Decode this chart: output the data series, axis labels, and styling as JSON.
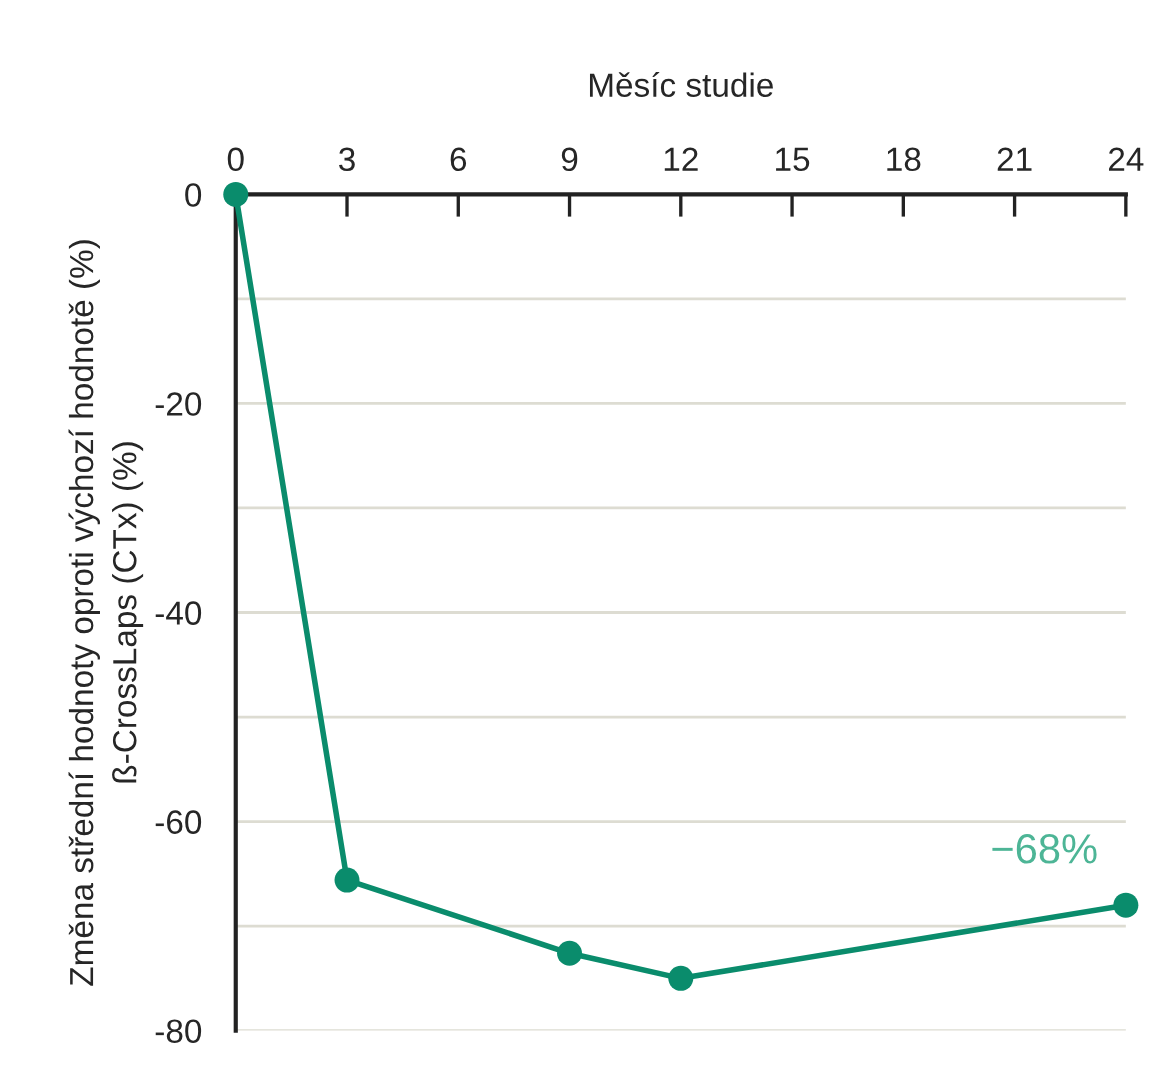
{
  "chart_data": {
    "type": "line",
    "xlabel": "Měsíc studie",
    "ylabel": "Změna střední hodnoty oproti výchozí hodnotě (%)\nß-CrossLaps (CTx) (%)",
    "x": [
      0,
      3,
      9,
      12,
      24
    ],
    "series": [
      {
        "color": "#0a8c6c",
        "values": [
          0,
          -65.6,
          -72.6,
          -75,
          -68
        ]
      }
    ],
    "xlim": [
      0,
      24
    ],
    "xticks": [
      0,
      3,
      6,
      9,
      12,
      15,
      18,
      21,
      24
    ],
    "ylim": [
      -80,
      0
    ],
    "yticks": [
      {
        "value": -80,
        "label": "-80"
      },
      {
        "value": -70,
        "label": null
      },
      {
        "value": -60,
        "label": "-60"
      },
      {
        "value": -50,
        "label": null
      },
      {
        "value": -40,
        "label": "-40"
      },
      {
        "value": -30,
        "label": null
      },
      {
        "value": -20,
        "label": "-20"
      },
      {
        "value": -10,
        "label": null
      },
      {
        "value": 0,
        "label": "0"
      }
    ],
    "annotations": [
      {
        "text": "−68%",
        "x": 24,
        "y": -68
      }
    ],
    "grid": "y",
    "marker": "circle",
    "line_style": "solid",
    "legend": false
  }
}
